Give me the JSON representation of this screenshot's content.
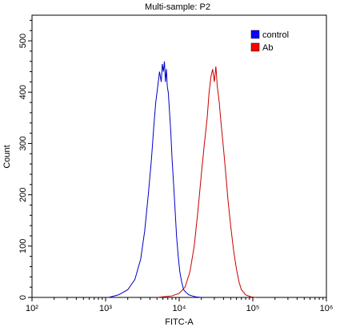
{
  "chart_data": {
    "type": "line",
    "title": "Multi-sample: P2",
    "xlabel": "FITC-A",
    "ylabel": "Count",
    "x_scale": "log",
    "xlim": [
      100,
      1000000
    ],
    "ylim": [
      0,
      550
    ],
    "x_tick_labels": [
      "10²",
      "10³",
      "10⁴",
      "10⁵",
      "10⁶"
    ],
    "x_tick_values": [
      100,
      1000,
      10000,
      100000,
      1000000
    ],
    "y_ticks": [
      0,
      100,
      200,
      300,
      400,
      500
    ],
    "grid": false,
    "legend_position": "top-right",
    "series": [
      {
        "name": "control",
        "color": "#0000c8",
        "legend_color": "#0000ff",
        "x": [
          1100,
          1500,
          2000,
          2500,
          3000,
          3400,
          3800,
          4200,
          4500,
          4800,
          5100,
          5400,
          5700,
          5900,
          6100,
          6300,
          6500,
          6700,
          6900,
          7100,
          7400,
          7700,
          8000,
          8400,
          8800,
          9200,
          9700,
          10200,
          10800,
          11500,
          12300,
          13500,
          15000,
          17000,
          20000
        ],
        "y": [
          0,
          5,
          15,
          35,
          75,
          130,
          200,
          270,
          330,
          380,
          410,
          440,
          420,
          455,
          440,
          460,
          420,
          445,
          410,
          400,
          360,
          320,
          270,
          220,
          170,
          120,
          80,
          50,
          30,
          15,
          10,
          5,
          3,
          1,
          0
        ]
      },
      {
        "name": "Ab",
        "color": "#c80000",
        "legend_color": "#ff0000",
        "x": [
          5000,
          8000,
          10000,
          12000,
          14000,
          16000,
          18000,
          20000,
          22000,
          24000,
          25500,
          27000,
          28500,
          30000,
          31500,
          33000,
          35000,
          37000,
          40000,
          43000,
          46000,
          50000,
          55000,
          60000,
          65000,
          70000,
          80000,
          95000,
          110000
        ],
        "y": [
          0,
          3,
          8,
          20,
          50,
          100,
          170,
          240,
          300,
          350,
          400,
          430,
          445,
          420,
          450,
          410,
          380,
          340,
          290,
          240,
          190,
          140,
          90,
          55,
          30,
          15,
          5,
          1,
          0
        ]
      }
    ]
  }
}
